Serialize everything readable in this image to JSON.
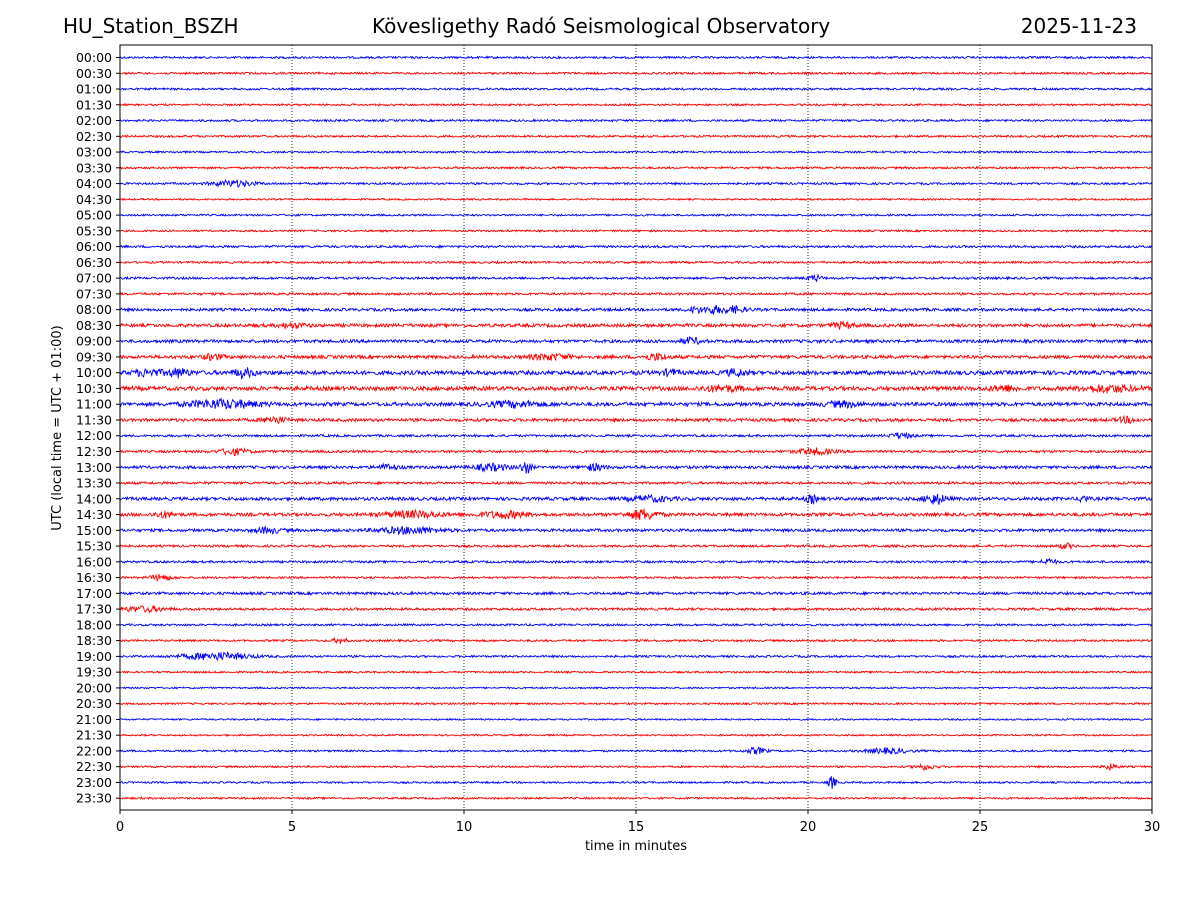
{
  "header": {
    "station": "HU_Station_BSZH",
    "title": "Kövesligethy Radó Seismological Observatory",
    "date": "2025-11-23"
  },
  "chart_data": {
    "type": "line",
    "title": "Kövesligethy Radó Seismological Observatory",
    "xlabel": "time in minutes",
    "ylabel": "UTC (local time = UTC + 01:00)",
    "xlim": [
      0,
      30
    ],
    "xticks": [
      0,
      5,
      10,
      15,
      20,
      25,
      30
    ],
    "grid": "vertical dotted lines at 5-minute ticks",
    "series_colors": [
      "#0000ff",
      "#ff0000"
    ],
    "row_labels": [
      "00:00",
      "00:30",
      "01:00",
      "01:30",
      "02:00",
      "02:30",
      "03:00",
      "03:30",
      "04:00",
      "04:30",
      "05:00",
      "05:30",
      "06:00",
      "06:30",
      "07:00",
      "07:30",
      "08:00",
      "08:30",
      "09:00",
      "09:30",
      "10:00",
      "10:30",
      "11:00",
      "11:30",
      "12:00",
      "12:30",
      "13:00",
      "13:30",
      "14:00",
      "14:30",
      "15:00",
      "15:30",
      "16:00",
      "16:30",
      "17:00",
      "17:30",
      "18:00",
      "18:30",
      "19:00",
      "19:30",
      "20:00",
      "20:30",
      "21:00",
      "21:30",
      "22:00",
      "22:30",
      "23:00",
      "23:30"
    ],
    "noise_levels": [
      1.0,
      1.0,
      1.0,
      0.9,
      1.0,
      1.0,
      0.9,
      1.0,
      1.0,
      0.8,
      0.9,
      0.9,
      1.1,
      1.0,
      1.1,
      1.1,
      1.4,
      1.6,
      1.5,
      1.6,
      2.0,
      2.0,
      1.8,
      1.5,
      1.1,
      1.2,
      1.4,
      1.2,
      1.6,
      1.6,
      1.4,
      1.1,
      1.1,
      1.0,
      1.3,
      1.2,
      1.0,
      1.0,
      1.0,
      0.9,
      0.8,
      0.9,
      0.8,
      0.8,
      0.9,
      0.9,
      0.9,
      0.9
    ],
    "events": [
      {
        "row": 8,
        "x": 3.3,
        "amp": 3,
        "width": 0.6
      },
      {
        "row": 14,
        "x": 20.2,
        "amp": 3,
        "width": 0.2
      },
      {
        "row": 16,
        "x": 17.2,
        "amp": 3,
        "width": 0.3
      },
      {
        "row": 16,
        "x": 17.8,
        "amp": 3,
        "width": 0.4
      },
      {
        "row": 16,
        "x": 16.7,
        "amp": 2.5,
        "width": 0.2
      },
      {
        "row": 17,
        "x": 21.0,
        "amp": 3,
        "width": 0.3
      },
      {
        "row": 17,
        "x": 5.0,
        "amp": 2,
        "width": 0.4
      },
      {
        "row": 18,
        "x": 16.6,
        "amp": 3,
        "width": 0.3
      },
      {
        "row": 19,
        "x": 12.5,
        "amp": 2.5,
        "width": 0.6
      },
      {
        "row": 19,
        "x": 15.6,
        "amp": 3,
        "width": 0.3
      },
      {
        "row": 19,
        "x": 2.7,
        "amp": 2.5,
        "width": 0.3
      },
      {
        "row": 20,
        "x": 1.7,
        "amp": 4,
        "width": 0.3
      },
      {
        "row": 20,
        "x": 3.6,
        "amp": 4,
        "width": 0.3
      },
      {
        "row": 20,
        "x": 0.8,
        "amp": 3,
        "width": 0.4
      },
      {
        "row": 20,
        "x": 16.0,
        "amp": 3,
        "width": 0.2
      },
      {
        "row": 20,
        "x": 17.9,
        "amp": 3,
        "width": 0.3
      },
      {
        "row": 21,
        "x": 28.7,
        "amp": 3,
        "width": 0.8
      },
      {
        "row": 21,
        "x": 25.7,
        "amp": 2.5,
        "width": 0.4
      },
      {
        "row": 21,
        "x": 17.5,
        "amp": 2.5,
        "width": 0.6
      },
      {
        "row": 22,
        "x": 3.0,
        "amp": 4,
        "width": 1.0
      },
      {
        "row": 22,
        "x": 11.5,
        "amp": 2.5,
        "width": 0.8
      },
      {
        "row": 22,
        "x": 21.0,
        "amp": 2.5,
        "width": 0.5
      },
      {
        "row": 23,
        "x": 4.5,
        "amp": 3,
        "width": 0.3
      },
      {
        "row": 23,
        "x": 29.3,
        "amp": 2.5,
        "width": 0.3
      },
      {
        "row": 24,
        "x": 22.7,
        "amp": 2.5,
        "width": 0.3
      },
      {
        "row": 25,
        "x": 3.3,
        "amp": 3,
        "width": 0.4
      },
      {
        "row": 25,
        "x": 20.2,
        "amp": 3,
        "width": 0.5
      },
      {
        "row": 26,
        "x": 11.8,
        "amp": 6,
        "width": 0.15
      },
      {
        "row": 26,
        "x": 10.8,
        "amp": 3,
        "width": 0.5
      },
      {
        "row": 26,
        "x": 13.8,
        "amp": 3,
        "width": 0.3
      },
      {
        "row": 26,
        "x": 7.8,
        "amp": 2.5,
        "width": 0.3
      },
      {
        "row": 28,
        "x": 23.7,
        "amp": 5,
        "width": 0.3
      },
      {
        "row": 28,
        "x": 20.1,
        "amp": 4,
        "width": 0.15
      },
      {
        "row": 28,
        "x": 28.0,
        "amp": 4,
        "width": 0.12
      },
      {
        "row": 28,
        "x": 15.4,
        "amp": 2.5,
        "width": 0.6
      },
      {
        "row": 29,
        "x": 15.2,
        "amp": 5,
        "width": 0.4
      },
      {
        "row": 29,
        "x": 8.5,
        "amp": 3,
        "width": 0.8
      },
      {
        "row": 29,
        "x": 11.2,
        "amp": 3,
        "width": 0.7
      },
      {
        "row": 29,
        "x": 1.3,
        "amp": 2.5,
        "width": 0.3
      },
      {
        "row": 30,
        "x": 8.4,
        "amp": 3,
        "width": 0.9
      },
      {
        "row": 30,
        "x": 4.3,
        "amp": 2.5,
        "width": 0.4
      },
      {
        "row": 31,
        "x": 27.5,
        "amp": 2.5,
        "width": 0.2
      },
      {
        "row": 32,
        "x": 27.0,
        "amp": 3,
        "width": 0.2
      },
      {
        "row": 33,
        "x": 1.2,
        "amp": 3,
        "width": 0.3
      },
      {
        "row": 35,
        "x": 0.7,
        "amp": 2.5,
        "width": 0.6
      },
      {
        "row": 37,
        "x": 6.4,
        "amp": 2.5,
        "width": 0.2
      },
      {
        "row": 38,
        "x": 2.8,
        "amp": 3.5,
        "width": 1.0
      },
      {
        "row": 44,
        "x": 18.5,
        "amp": 3,
        "width": 0.3
      },
      {
        "row": 44,
        "x": 22.3,
        "amp": 2.5,
        "width": 0.6
      },
      {
        "row": 45,
        "x": 23.4,
        "amp": 2.5,
        "width": 0.3
      },
      {
        "row": 45,
        "x": 28.8,
        "amp": 2.5,
        "width": 0.2
      },
      {
        "row": 46,
        "x": 20.7,
        "amp": 6,
        "width": 0.12
      }
    ]
  }
}
